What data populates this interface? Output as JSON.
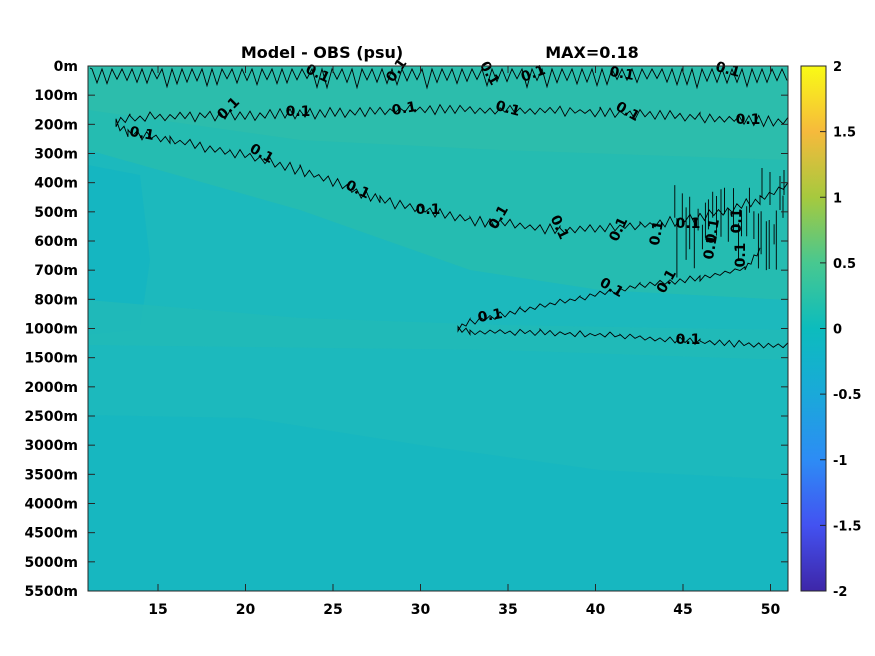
{
  "chart_data": {
    "type": "heatmap",
    "title_left": "Model - OBS (psu)",
    "title_right": "MAX=0.18",
    "colormap": "parula",
    "x_ticks": [
      "15",
      "20",
      "25",
      "30",
      "35",
      "40",
      "45",
      "50"
    ],
    "x_tick_values": [
      15,
      20,
      25,
      30,
      35,
      40,
      45,
      50
    ],
    "xlim": [
      11,
      51
    ],
    "y_ticks": [
      "0m",
      "100m",
      "200m",
      "300m",
      "400m",
      "500m",
      "600m",
      "700m",
      "800m",
      "1000m",
      "1500m",
      "2000m",
      "2500m",
      "3000m",
      "3500m",
      "4000m",
      "4500m",
      "5000m",
      "5500m"
    ],
    "colorbar": {
      "ticks": [
        "2",
        "1.5",
        "1",
        "0.5",
        "0",
        "-0.5",
        "-1",
        "-1.5",
        "-2"
      ],
      "tick_values": [
        2,
        1.5,
        1,
        0.5,
        0,
        -0.5,
        -1,
        -1.5,
        -2
      ],
      "clim": [
        -2,
        2
      ]
    },
    "contour_level": 0.1,
    "contour_labels": [
      "0.1",
      "0.1",
      "0.1",
      "0.1",
      "0.1",
      "0.1",
      "0.1",
      "0.1",
      "0.1",
      "0.1",
      "0.1",
      "0.1",
      "0.1",
      "0.1",
      "0.1",
      "0.1",
      "0.1",
      "0.1",
      "0.1",
      "0.1",
      "0.1",
      "0.1",
      "0.1",
      "0.1",
      "0.1",
      "0.1",
      "0.1",
      "0.1",
      "0.1"
    ]
  }
}
